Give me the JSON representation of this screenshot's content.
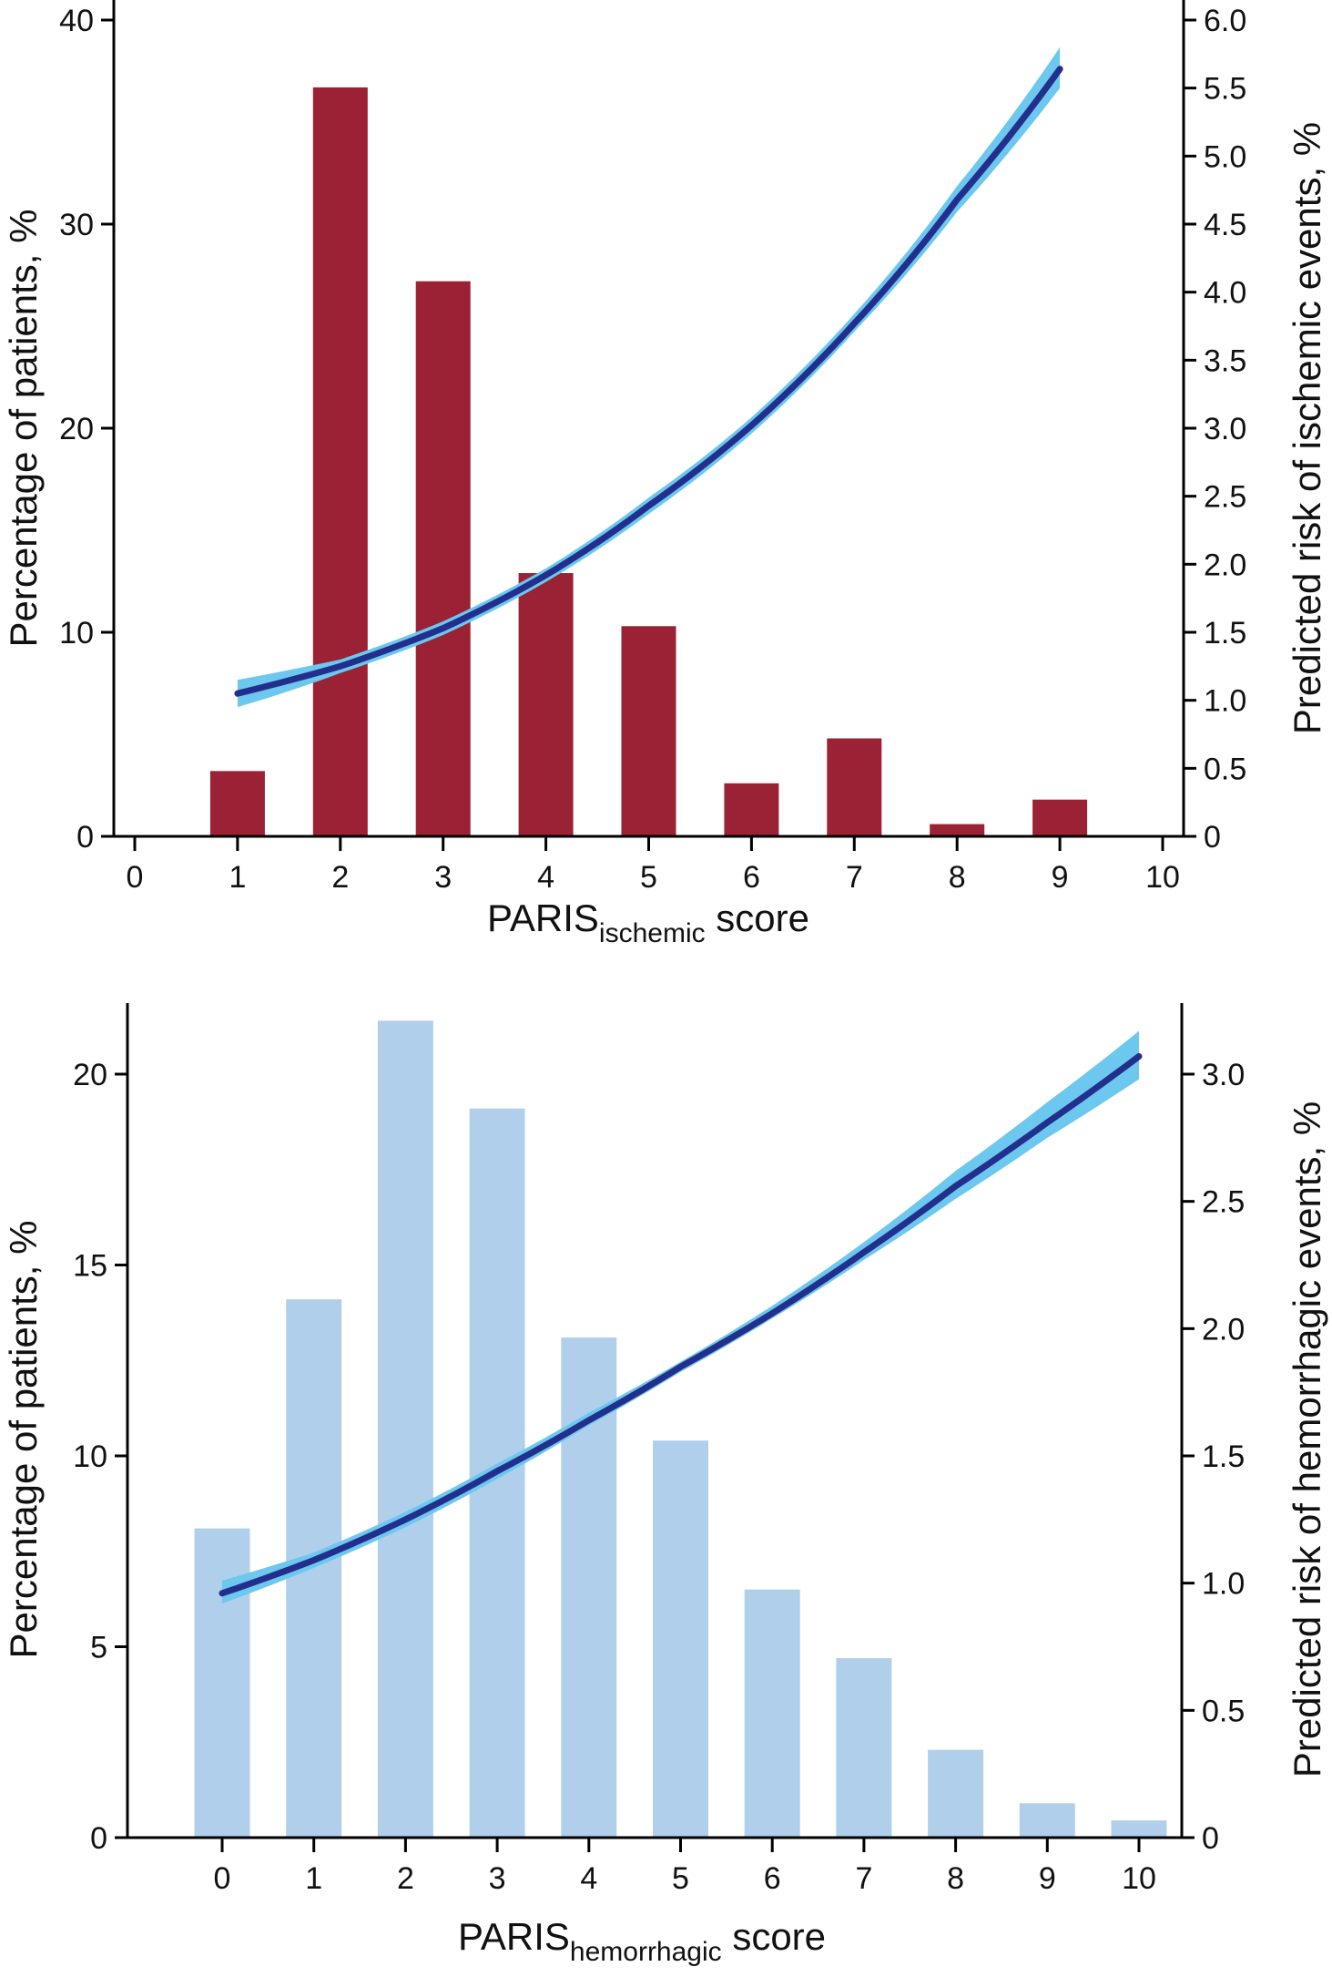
{
  "colors": {
    "bar_top": "#9b2234",
    "bar_bottom": "#b0cfeb",
    "curve": "#232f8c",
    "ci_band": "#6cc8ef"
  },
  "chart_data": [
    {
      "type": "bar",
      "xlabel": {
        "main": "PARIS",
        "sub": "ischemic",
        "suffix": " score"
      },
      "ylabel": "Percentage of patients, %",
      "y2label": "Predicted risk of ischemic events, %",
      "xticks": [
        "0",
        "1",
        "2",
        "3",
        "4",
        "5",
        "6",
        "7",
        "8",
        "9",
        "10"
      ],
      "yticks": [
        "0",
        "10",
        "20",
        "30",
        "40"
      ],
      "y2ticks": [
        "0",
        "0.5",
        "1.0",
        "1.5",
        "2.0",
        "2.5",
        "3.0",
        "3.5",
        "4.0",
        "4.5",
        "5.0",
        "5.5",
        "6.0"
      ],
      "xlim": [
        0,
        10
      ],
      "ylim": [
        0,
        40
      ],
      "y2lim": [
        0,
        6
      ],
      "categories": [
        1,
        2,
        3,
        4,
        5,
        6,
        7,
        8,
        9
      ],
      "values": [
        3.2,
        36.7,
        27.2,
        12.9,
        10.3,
        2.6,
        4.8,
        0.6,
        1.8
      ],
      "curve": {
        "type": "line",
        "axis": "right",
        "x": [
          1,
          2,
          3,
          4,
          5,
          6,
          7,
          8,
          9
        ],
        "y": [
          1.05,
          1.25,
          1.53,
          1.92,
          2.43,
          3.02,
          3.77,
          4.68,
          5.64
        ],
        "ci_lower": [
          0.95,
          1.2,
          1.48,
          1.87,
          2.37,
          2.96,
          3.71,
          4.59,
          5.5
        ],
        "ci_upper": [
          1.15,
          1.3,
          1.58,
          1.97,
          2.49,
          3.08,
          3.84,
          4.78,
          5.8
        ]
      }
    },
    {
      "type": "bar",
      "xlabel": {
        "main": "PARIS",
        "sub": "hemorrhagic",
        "suffix": " score"
      },
      "ylabel": "Percentage of patients, %",
      "y2label": "Predicted risk of hemorrhagic events, %",
      "xticks": [
        "0",
        "1",
        "2",
        "3",
        "4",
        "5",
        "6",
        "7",
        "8",
        "9",
        "10"
      ],
      "yticks": [
        "0",
        "5",
        "10",
        "15",
        "20"
      ],
      "y2ticks": [
        "0",
        "0.5",
        "1.0",
        "1.5",
        "2.0",
        "2.5",
        "3.0"
      ],
      "xlim": [
        0,
        10
      ],
      "ylim": [
        0,
        20
      ],
      "y2lim": [
        0,
        3
      ],
      "categories": [
        0,
        1,
        2,
        3,
        4,
        5,
        6,
        7,
        8,
        9,
        10
      ],
      "values": [
        8.1,
        14.1,
        21.4,
        19.1,
        13.1,
        10.4,
        6.5,
        4.7,
        2.3,
        0.9,
        0.45
      ],
      "curve": {
        "type": "line",
        "axis": "right",
        "x": [
          0,
          1,
          2,
          3,
          4,
          5,
          6,
          7,
          8,
          9,
          10
        ],
        "y": [
          0.96,
          1.09,
          1.25,
          1.44,
          1.64,
          1.85,
          2.06,
          2.3,
          2.56,
          2.81,
          3.07
        ],
        "ci_lower": [
          0.92,
          1.06,
          1.22,
          1.41,
          1.62,
          1.83,
          2.04,
          2.27,
          2.51,
          2.75,
          2.98
        ],
        "ci_upper": [
          1.01,
          1.12,
          1.28,
          1.47,
          1.67,
          1.87,
          2.09,
          2.34,
          2.62,
          2.89,
          3.17
        ]
      }
    }
  ]
}
